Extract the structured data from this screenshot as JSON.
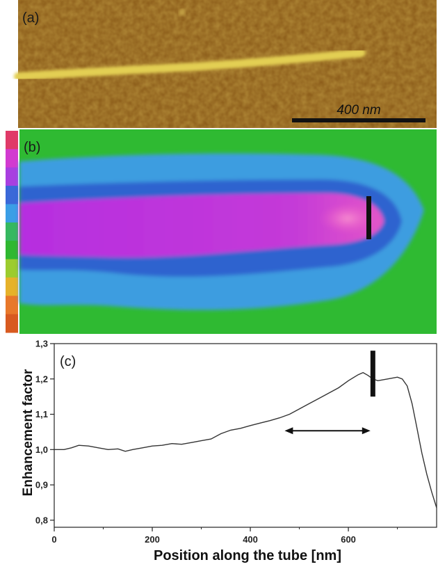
{
  "panels": {
    "a": {
      "label": "(a)",
      "scale_bar_label": "400 nm"
    },
    "b": {
      "label": "(b)"
    },
    "c": {
      "label": "(c)"
    }
  },
  "colors": {
    "afm_background": "#8a5a18",
    "tube": "#e3cf52",
    "map_background": "#2fba32",
    "outer_ring": "#3d9de0",
    "mid_ring": "#2f64cf",
    "core": "#b62ee0",
    "hot_spot": "#f05cc5",
    "colorbar": [
      "#e03a68",
      "#d23ad0",
      "#a83fe0",
      "#3a68d8",
      "#3a9ee6",
      "#35b860",
      "#2fb830",
      "#9ccc2e",
      "#e6b22a",
      "#e8782a",
      "#d85a20"
    ]
  },
  "chart_data": {
    "type": "line",
    "xlabel": "Position along the tube [nm]",
    "ylabel": "Enhancement factor",
    "xlim": [
      0,
      780
    ],
    "ylim": [
      0.78,
      1.3
    ],
    "x_ticks": [
      0,
      200,
      400,
      600
    ],
    "y_ticks": [
      0.8,
      0.9,
      1.0,
      1.1,
      1.2,
      1.3
    ],
    "y_tick_labels": [
      "0,8",
      "0,9",
      "1,0",
      "1,1",
      "1,2",
      "1,3"
    ],
    "grid": false,
    "series": [
      {
        "x": [
          0,
          20,
          35,
          50,
          70,
          90,
          110,
          130,
          145,
          160,
          180,
          200,
          220,
          240,
          260,
          280,
          300,
          320,
          340,
          360,
          380,
          400,
          420,
          440,
          460,
          480,
          500,
          520,
          540,
          560,
          580,
          600,
          620,
          630,
          640,
          650,
          660,
          680,
          700,
          710,
          720,
          730,
          740,
          750,
          760,
          770,
          780
        ],
        "y": [
          1.0,
          1.0,
          1.005,
          1.012,
          1.01,
          1.005,
          1.0,
          1.002,
          0.995,
          1.0,
          1.005,
          1.01,
          1.012,
          1.017,
          1.015,
          1.02,
          1.025,
          1.03,
          1.045,
          1.055,
          1.06,
          1.068,
          1.075,
          1.082,
          1.09,
          1.1,
          1.115,
          1.13,
          1.145,
          1.16,
          1.175,
          1.195,
          1.212,
          1.218,
          1.21,
          1.2,
          1.195,
          1.2,
          1.205,
          1.2,
          1.18,
          1.13,
          1.06,
          0.99,
          0.93,
          0.88,
          0.835
        ]
      }
    ],
    "arrow_range": [
      470,
      645
    ],
    "marker_x": 650,
    "marker_y_range": [
      1.15,
      1.28
    ]
  }
}
